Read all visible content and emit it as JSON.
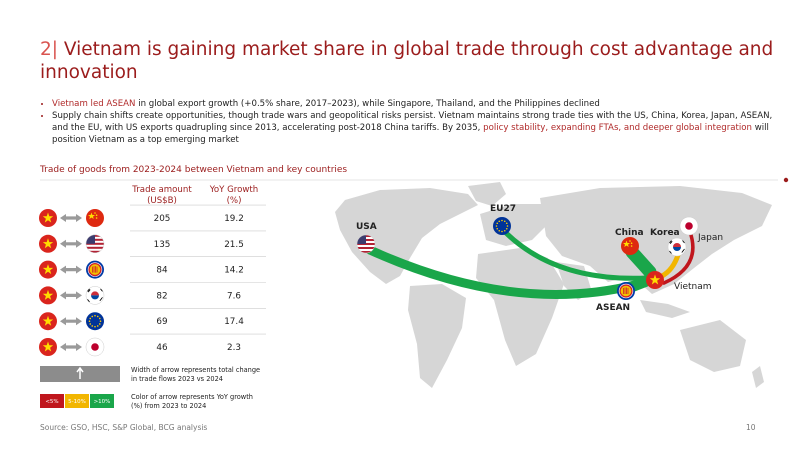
{
  "header": {
    "number": "2|",
    "title": "Vietnam is gaining market share in global trade through cost advantage and innovation"
  },
  "bullets": [
    [
      "Vietnam led ASEAN",
      " in global export growth (+0.5% share, 2017–2023), while Singapore, Thailand, and the Philippines declined"
    ],
    [
      "Supply chain shifts create opportunities, though trade wars and geopolitical risks persist. Vietnam maintains strong trade ties with the US, China, Korea, Japan, ASEAN, and the EU, with US exports quadrupling since 2013, accelerating post-2018 China tariffs. By 2035, ",
      "policy stability, expanding FTAs, and deeper global integration",
      " will position Vietnam as a top emerging market"
    ]
  ],
  "section_title": "Trade of goods from 2023-2024 between Vietnam and key countries",
  "table": {
    "headers": [
      [
        "Trade amount",
        "(US$B)"
      ],
      [
        "YoY Growth",
        "(%)"
      ]
    ],
    "rows": [
      [
        "205",
        "19.2"
      ],
      [
        "135",
        "21.5"
      ],
      [
        "84",
        "14.2"
      ],
      [
        "82",
        "7.6"
      ],
      [
        "69",
        "17.4"
      ],
      [
        "46",
        "2.3"
      ]
    ]
  },
  "legend": {
    "width_note": [
      "Width of arrow represents total change",
      "in trade flows 2023 vs 2024"
    ],
    "color_note": [
      "Color of arrow represents YoY growth",
      "(%) from 2023 to 2024"
    ],
    "color_labels": [
      "<5%",
      "5-10%",
      ">10%"
    ]
  },
  "map_labels": {
    "usa": "USA",
    "eu": "EU27",
    "china": "China",
    "korea": "Korea",
    "japan": "Japan",
    "vietnam": "Vietnam",
    "asean": "ASEAN"
  },
  "footer": {
    "source": "Source: GSO, HSC, S&P Global, BCG analysis",
    "page": "10"
  }
}
